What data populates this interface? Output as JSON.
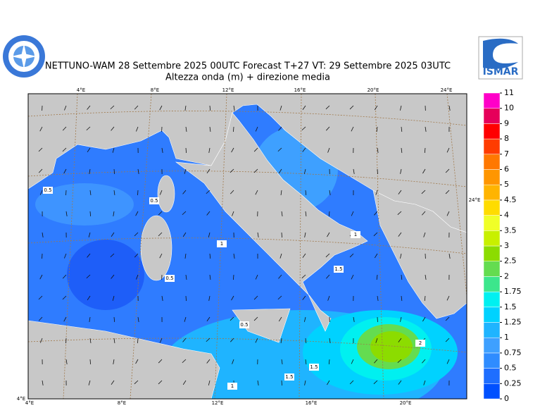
{
  "header": {
    "title": "NETTUNO-WAM  28 Settembre 2025 00UTC Forecast T+27 VT: 29 Settembre 2025 03UTC",
    "subtitle": "Altezza onda (m) + direzione media",
    "logo_text": "ISMAR"
  },
  "map": {
    "lon_labels_top": [
      "4°E",
      "8°E",
      "12°E",
      "16°E",
      "20°E",
      "24°E"
    ],
    "lon_labels_bottom": [
      "4°E",
      "8°E",
      "12°E",
      "16°E",
      "20°E"
    ],
    "lat_labels": [
      "24°E",
      "4°E"
    ],
    "contour_labels": [
      "0.5",
      "0.5",
      "0.5",
      "1",
      "1",
      "1.5",
      "0.5",
      "1.5",
      "1.5",
      "2",
      "1"
    ]
  },
  "colorbar": {
    "levels": [
      0,
      0.25,
      0.5,
      0.75,
      1,
      1.25,
      1.5,
      1.75,
      2,
      2.5,
      3,
      3.5,
      4,
      4.5,
      5,
      6,
      7,
      8,
      9,
      10,
      11
    ],
    "colors": [
      "#0050ff",
      "#1e6eff",
      "#2f8cff",
      "#3ea0ff",
      "#1fb4ff",
      "#00d2ff",
      "#00f0f0",
      "#3ce68c",
      "#64dc50",
      "#8cdc00",
      "#c8f000",
      "#f0ff28",
      "#ffdc00",
      "#ffb400",
      "#ff9600",
      "#ff7800",
      "#ff3c00",
      "#ff0000",
      "#e6005a",
      "#ff00c8"
    ]
  }
}
